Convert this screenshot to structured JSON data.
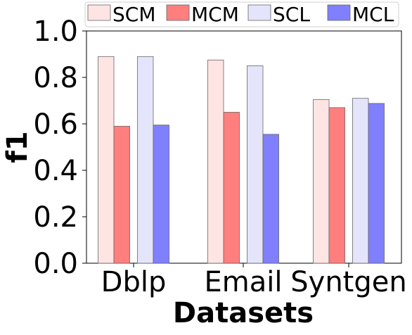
{
  "chart_data": {
    "type": "bar",
    "title": "",
    "xlabel": "Datasets",
    "ylabel": "f1",
    "ylim": [
      0.0,
      1.0
    ],
    "yticks": [
      "0.0",
      "0.2",
      "0.4",
      "0.6",
      "0.8",
      "1.0"
    ],
    "categories": [
      "Dblp",
      "Email",
      "Syntgen"
    ],
    "series": [
      {
        "name": "SCM",
        "color": "#ffe4e4",
        "values": [
          0.89,
          0.875,
          0.705
        ]
      },
      {
        "name": "MCM",
        "color": "#ff7f7f",
        "values": [
          0.59,
          0.65,
          0.67
        ]
      },
      {
        "name": "SCL",
        "color": "#e4e4fb",
        "values": [
          0.89,
          0.85,
          0.71
        ]
      },
      {
        "name": "MCL",
        "color": "#8080ff",
        "values": [
          0.595,
          0.555,
          0.688
        ]
      }
    ],
    "legend": {
      "position": "top",
      "columns": 4
    },
    "grid": false
  }
}
